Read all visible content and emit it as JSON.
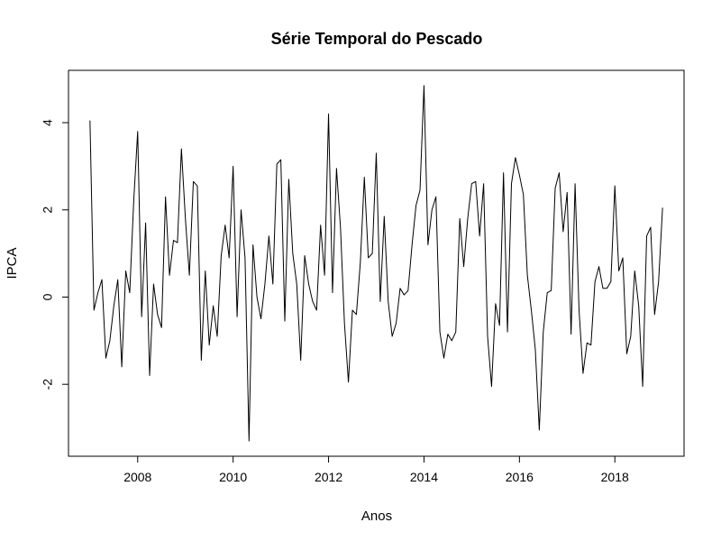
{
  "chart_data": {
    "type": "line",
    "title": "Série Temporal do Pescado",
    "xlabel": "Anos",
    "ylabel": "IPCA",
    "xlim": [
      2006.55,
      2019.45
    ],
    "ylim": [
      -3.65,
      5.2
    ],
    "x_ticks": [
      2008,
      2010,
      2012,
      2014,
      2016,
      2018
    ],
    "x_tick_labels": [
      "2008",
      "2010",
      "2012",
      "2014",
      "2016",
      "2018"
    ],
    "y_ticks": [
      -2,
      0,
      2,
      4
    ],
    "y_tick_labels": [
      "-2",
      "0",
      "2",
      "4"
    ],
    "grid": false,
    "legend": "none",
    "series": [
      {
        "color": "#000000",
        "x_start": 2007.0,
        "x_step": 0.08333,
        "values": [
          4.05,
          -0.3,
          0.1,
          0.4,
          -1.4,
          -1.0,
          -0.2,
          0.4,
          -1.6,
          0.6,
          0.1,
          2.2,
          3.8,
          -0.45,
          1.7,
          -1.8,
          0.3,
          -0.4,
          -0.7,
          2.3,
          0.5,
          1.3,
          1.25,
          3.4,
          1.8,
          0.5,
          2.65,
          2.55,
          -1.45,
          0.6,
          -1.1,
          -0.2,
          -0.9,
          0.95,
          1.65,
          0.9,
          3.0,
          -0.45,
          2.0,
          0.9,
          -3.3,
          1.2,
          0.0,
          -0.5,
          0.3,
          1.4,
          0.3,
          3.05,
          3.15,
          -0.55,
          2.7,
          1.0,
          0.3,
          -1.45,
          0.95,
          0.3,
          -0.1,
          -0.3,
          1.65,
          0.5,
          4.2,
          0.1,
          2.95,
          1.6,
          -0.6,
          -1.95,
          -0.3,
          -0.4,
          0.8,
          2.75,
          0.9,
          1.0,
          3.3,
          -0.1,
          1.85,
          -0.1,
          -0.9,
          -0.6,
          0.2,
          0.05,
          0.15,
          1.2,
          2.1,
          2.45,
          4.85,
          1.2,
          2.0,
          2.3,
          -0.8,
          -1.4,
          -0.85,
          -1.0,
          -0.8,
          1.8,
          0.7,
          1.8,
          2.6,
          2.65,
          1.4,
          2.6,
          -0.9,
          -2.05,
          -0.15,
          -0.65,
          2.85,
          -0.8,
          2.6,
          3.2,
          2.8,
          2.35,
          0.5,
          -0.3,
          -1.2,
          -3.05,
          -0.8,
          0.1,
          0.15,
          2.5,
          2.85,
          1.5,
          2.4,
          -0.85,
          2.6,
          -0.3,
          -1.75,
          -1.05,
          -1.1,
          0.35,
          0.7,
          0.2,
          0.2,
          0.35,
          2.55,
          0.6,
          0.9,
          -1.3,
          -0.9,
          0.6,
          -0.2,
          -2.05,
          1.4,
          1.6,
          -0.4,
          0.35,
          2.05
        ]
      }
    ]
  }
}
